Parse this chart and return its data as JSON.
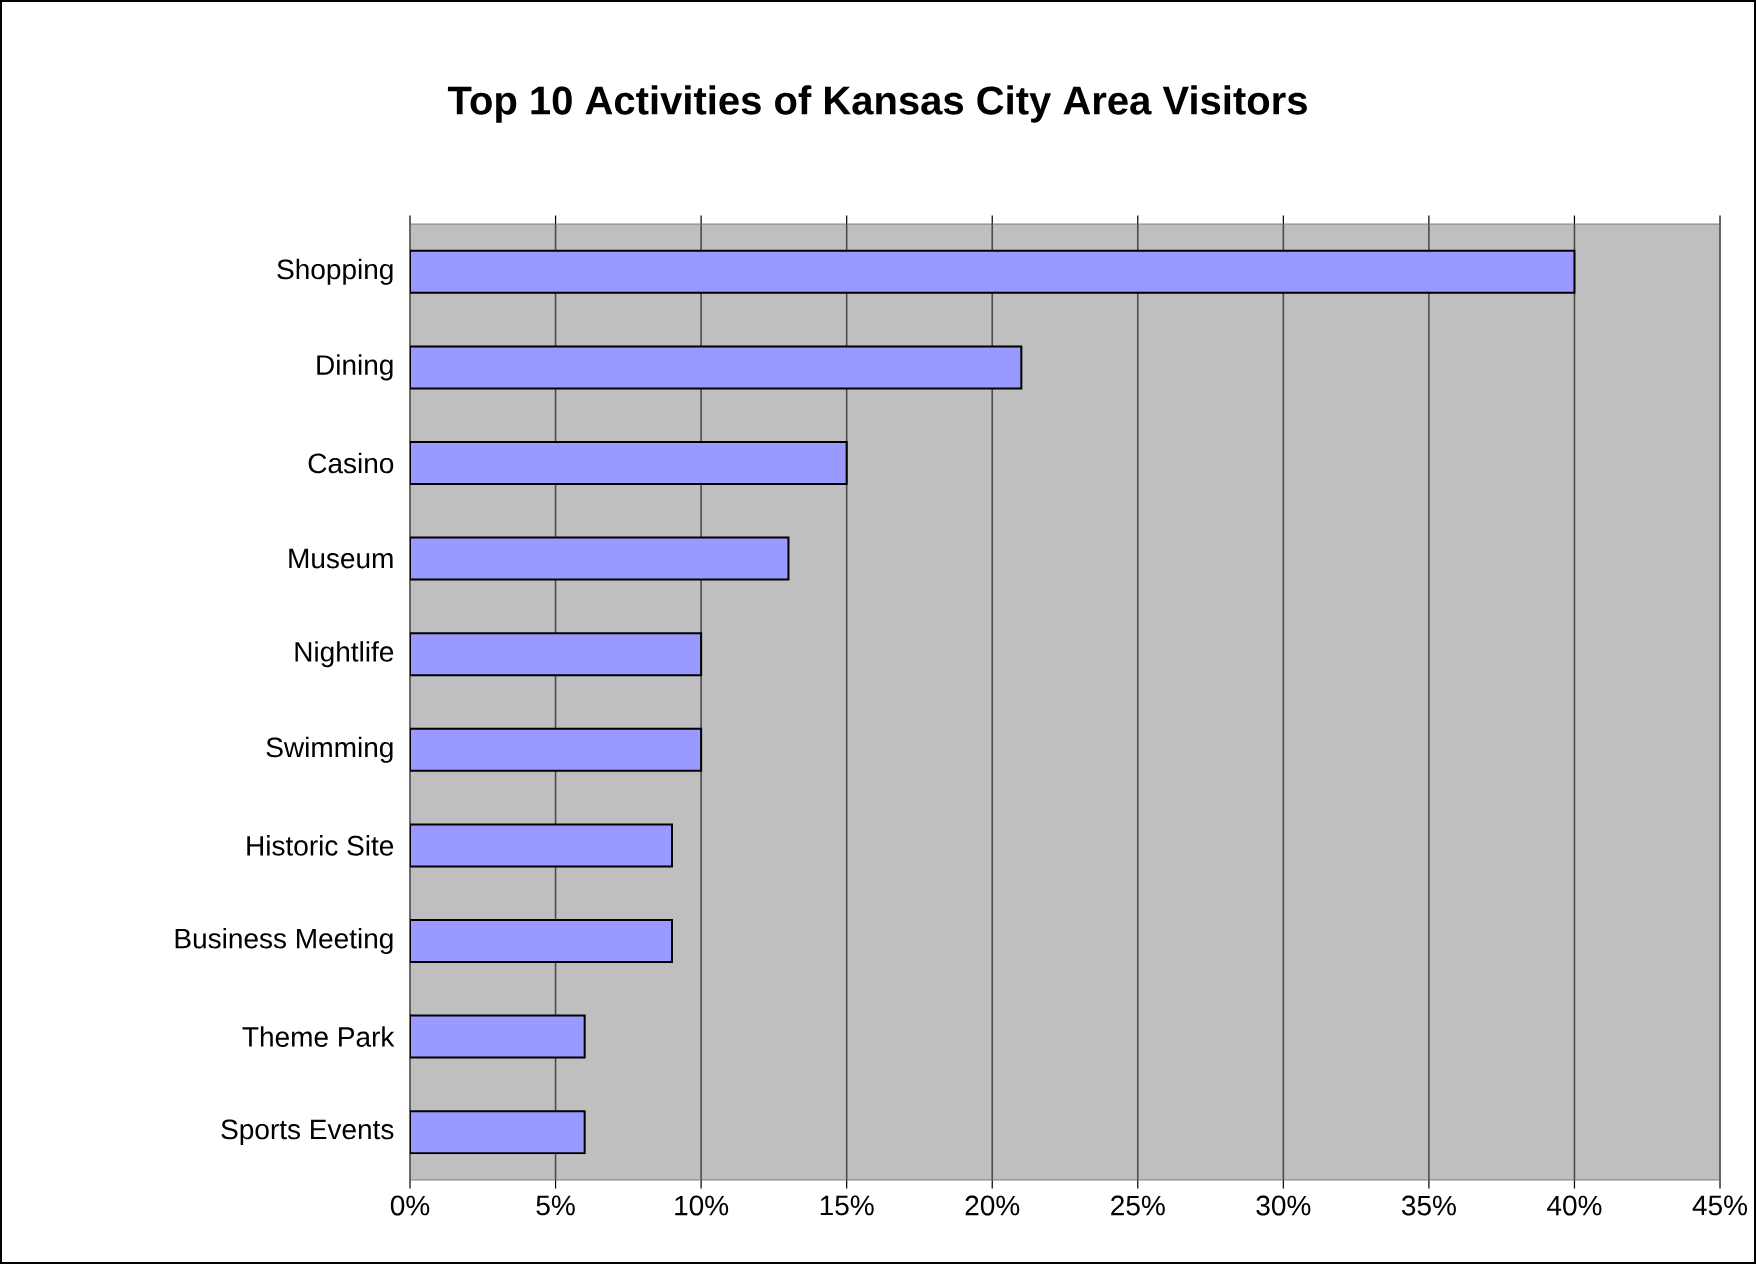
{
  "chart_data": {
    "type": "bar",
    "orientation": "horizontal",
    "title": "Top 10 Activities of Kansas City Area Visitors",
    "categories": [
      "Shopping",
      "Dining",
      "Casino",
      "Museum",
      "Nightlife",
      "Swimming",
      "Historic Site",
      "Business Meeting",
      "Theme Park",
      "Sports Events"
    ],
    "values": [
      40,
      21,
      15,
      13,
      10,
      10,
      9,
      9,
      6,
      6
    ],
    "color": "#9999ff",
    "xlim": [
      0,
      45
    ],
    "xticks": [
      {
        "value": 0,
        "label": "0%"
      },
      {
        "value": 5,
        "label": "5%"
      },
      {
        "value": 10,
        "label": "10%"
      },
      {
        "value": 15,
        "label": "15%"
      },
      {
        "value": 20,
        "label": "20%"
      },
      {
        "value": 25,
        "label": "25%"
      },
      {
        "value": 30,
        "label": "30%"
      },
      {
        "value": 35,
        "label": "35%"
      },
      {
        "value": 40,
        "label": "40%"
      },
      {
        "value": 45,
        "label": "45%"
      }
    ],
    "grid": "x"
  }
}
